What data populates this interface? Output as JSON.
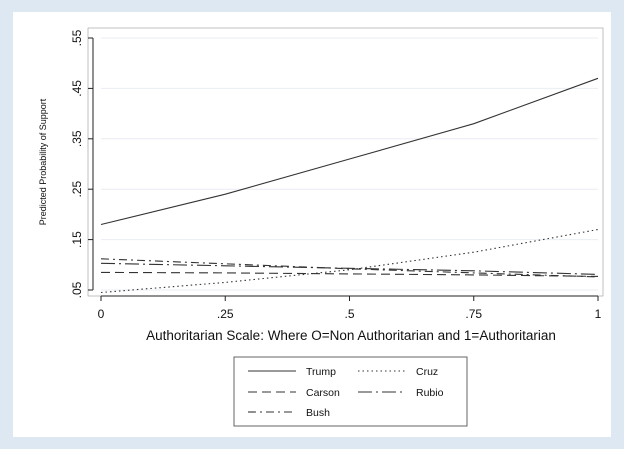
{
  "chart_data": {
    "type": "line",
    "title": "",
    "xlabel": "Authoritarian Scale: Where O=Non Authoritarian and 1=Authoritarian",
    "ylabel": "Predicted Probability of Support",
    "xlim": [
      0,
      1
    ],
    "ylim": [
      0.05,
      0.55
    ],
    "x_ticks": [
      "0",
      ".25",
      ".5",
      ".75",
      "1"
    ],
    "y_ticks": [
      ".05",
      ".15",
      ".25",
      ".35",
      ".45",
      ".55"
    ],
    "grid": "horizontal",
    "legend": "bottom",
    "x": [
      0,
      0.25,
      0.5,
      0.75,
      1
    ],
    "series": [
      {
        "name": "Trump",
        "values": [
          0.18,
          0.24,
          0.31,
          0.38,
          0.47
        ],
        "dash": "solid",
        "color": "#333333"
      },
      {
        "name": "Cruz",
        "values": [
          0.045,
          0.065,
          0.09,
          0.125,
          0.17
        ],
        "dash": "dotted",
        "color": "#333333"
      },
      {
        "name": "Carson",
        "values": [
          0.085,
          0.084,
          0.082,
          0.08,
          0.077
        ],
        "dash": "dashed",
        "color": "#333333"
      },
      {
        "name": "Rubio",
        "values": [
          0.103,
          0.098,
          0.093,
          0.088,
          0.081
        ],
        "dash": "longdash-dot",
        "color": "#333333"
      },
      {
        "name": "Bush",
        "values": [
          0.112,
          0.102,
          0.092,
          0.084,
          0.076
        ],
        "dash": "dash-dot",
        "color": "#333333"
      }
    ]
  }
}
